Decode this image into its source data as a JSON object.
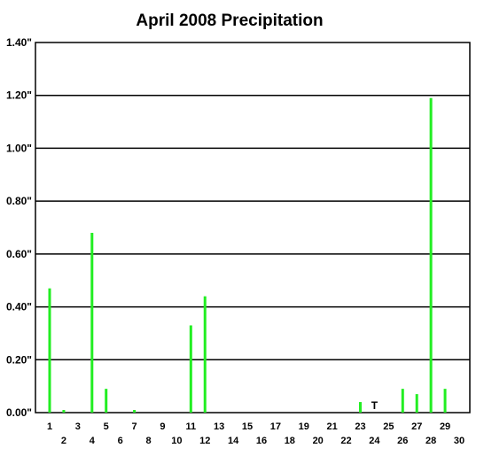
{
  "chart_data": {
    "type": "bar",
    "title": "April 2008 Precipitation",
    "xlabel": "",
    "ylabel": "",
    "ylim": [
      0,
      1.4
    ],
    "yticks": [
      0,
      0.2,
      0.4,
      0.6,
      0.8,
      1.0,
      1.2,
      1.4
    ],
    "ytick_labels": [
      "0.00\"",
      "0.20\"",
      "0.40\"",
      "0.60\"",
      "0.80\"",
      "1.00\"",
      "1.20\"",
      "1.40\""
    ],
    "grid": true,
    "bar_color": "#22ee22",
    "categories": [
      "1",
      "2",
      "3",
      "4",
      "5",
      "6",
      "7",
      "8",
      "9",
      "10",
      "11",
      "12",
      "13",
      "14",
      "15",
      "16",
      "17",
      "18",
      "19",
      "20",
      "21",
      "22",
      "23",
      "24",
      "25",
      "26",
      "27",
      "28",
      "29",
      "30"
    ],
    "values": [
      0.47,
      0.01,
      0,
      0.68,
      0.09,
      0,
      0.01,
      0,
      0,
      0,
      0.33,
      0.44,
      0,
      0,
      0,
      0,
      0,
      0,
      0,
      0,
      0,
      0,
      0.04,
      0,
      0,
      0.09,
      0.07,
      1.19,
      0.09,
      0
    ],
    "annotations": [
      {
        "category": "24",
        "text": "T"
      }
    ]
  }
}
